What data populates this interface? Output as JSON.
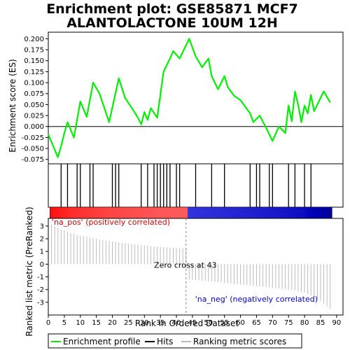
{
  "title_line1": "Enrichment plot: GSE85871 MCF7",
  "title_line2": "ALANTOLACTONE 10UM 12H",
  "chart_data": {
    "type": "line",
    "xlabel": "Rank in Ordered Dataset",
    "xlim": [
      0,
      92
    ],
    "x_ticks": [
      "0",
      "5",
      "10",
      "15",
      "20",
      "25",
      "30",
      "35",
      "40",
      "45",
      "50",
      "55",
      "60",
      "65",
      "70",
      "75",
      "80",
      "85",
      "90"
    ],
    "x_tick_values": [
      0,
      5,
      10,
      15,
      20,
      25,
      30,
      35,
      40,
      45,
      50,
      55,
      60,
      65,
      70,
      75,
      80,
      85,
      90
    ],
    "es_panel": {
      "ylabel": "Enrichment score (ES)",
      "ylim": [
        -0.085,
        0.215
      ],
      "y_ticks": [
        "0.200",
        "0.175",
        "0.150",
        "0.125",
        "0.100",
        "0.075",
        "0.050",
        "0.025",
        "0.000",
        "-0.025",
        "-0.050",
        "-0.075"
      ],
      "y_tick_values": [
        0.2,
        0.175,
        0.15,
        0.125,
        0.1,
        0.075,
        0.05,
        0.025,
        0.0,
        -0.025,
        -0.05,
        -0.075
      ],
      "series": {
        "name": "Enrichment profile",
        "color": "#00ee00",
        "x": [
          0,
          3,
          4,
          5,
          6,
          8,
          10,
          12,
          14,
          16,
          19,
          22,
          24,
          26,
          28,
          29,
          30,
          31,
          32,
          34,
          36,
          38,
          39,
          41,
          44,
          46,
          48,
          50,
          51,
          53,
          55,
          56,
          58,
          60,
          62,
          63,
          64,
          66,
          68,
          70,
          72,
          74,
          75,
          76,
          77,
          78,
          79,
          80,
          81,
          82,
          83,
          86,
          88
        ],
        "y": [
          -0.018,
          -0.07,
          -0.045,
          -0.015,
          0.01,
          -0.025,
          0.057,
          0.022,
          0.1,
          0.075,
          0.01,
          0.11,
          0.065,
          0.043,
          0.02,
          0.005,
          0.033,
          0.015,
          0.042,
          0.02,
          0.125,
          0.155,
          0.172,
          0.155,
          0.2,
          0.16,
          0.135,
          0.155,
          0.115,
          0.085,
          0.115,
          0.09,
          0.07,
          0.06,
          0.04,
          0.03,
          0.01,
          0.025,
          -0.003,
          -0.033,
          0.0,
          -0.015,
          0.048,
          0.012,
          0.08,
          0.05,
          0.01,
          0.048,
          0.03,
          0.072,
          0.035,
          0.08,
          0.055
        ]
      }
    },
    "hits_panel": {
      "hit_positions": [
        4,
        6,
        9,
        10,
        13,
        14,
        20,
        21,
        22,
        29,
        31,
        33,
        34,
        35,
        36,
        37,
        38,
        40,
        41,
        46,
        51,
        55,
        63,
        65,
        66,
        69,
        70,
        75,
        77,
        80,
        82
      ],
      "hit_color": "#000000",
      "bar_colors": {
        "positive": "#ff0000",
        "negative": "#0000ff"
      }
    },
    "metric_panel": {
      "ylabel": "Ranked list metric (PreRanked)",
      "ylim": [
        -4,
        3.6
      ],
      "y_ticks": [
        "3",
        "2",
        "1",
        "0",
        "-1",
        "-2",
        "-3"
      ],
      "y_tick_values": [
        3,
        2,
        1,
        0,
        -1,
        -2,
        -3
      ],
      "zero_cross_text": "Zero cross at 43",
      "zero_cross_rank": 43,
      "pos_label": "'na_pos' (positively correlated)",
      "neg_label": "'na_neg' (negatively correlated)",
      "pos_label_color": "#cc0000",
      "neg_label_color": "#0000cc",
      "values": [
        3.1,
        2.95,
        2.85,
        2.75,
        2.65,
        2.55,
        2.45,
        2.38,
        2.3,
        2.25,
        2.2,
        2.15,
        2.1,
        2.05,
        2.0,
        1.95,
        1.9,
        1.85,
        1.82,
        1.78,
        1.75,
        1.72,
        1.68,
        1.65,
        1.62,
        1.58,
        1.55,
        1.52,
        1.5,
        1.47,
        1.45,
        1.42,
        1.4,
        1.38,
        1.36,
        1.34,
        1.32,
        1.3,
        1.28,
        1.27,
        1.26,
        1.25,
        1.23,
        -1.2,
        -1.22,
        -1.25,
        -1.27,
        -1.3,
        -1.32,
        -1.35,
        -1.37,
        -1.4,
        -1.42,
        -1.45,
        -1.47,
        -1.5,
        -1.52,
        -1.55,
        -1.57,
        -1.6,
        -1.62,
        -1.65,
        -1.68,
        -1.7,
        -1.72,
        -1.75,
        -1.78,
        -1.8,
        -1.82,
        -1.85,
        -1.88,
        -1.9,
        -1.93,
        -1.96,
        -2.0,
        -2.03,
        -2.07,
        -2.12,
        -2.18,
        -2.25,
        -2.35,
        -2.45,
        -2.6,
        -2.75,
        -2.9,
        -3.1,
        -3.3,
        -3.5
      ]
    }
  },
  "legend": {
    "items": [
      {
        "label": "Enrichment profile",
        "color": "#00ee00"
      },
      {
        "label": "Hits",
        "color": "#000000"
      },
      {
        "label": "Ranking metric scores",
        "color": "#bbbbbb"
      }
    ]
  }
}
